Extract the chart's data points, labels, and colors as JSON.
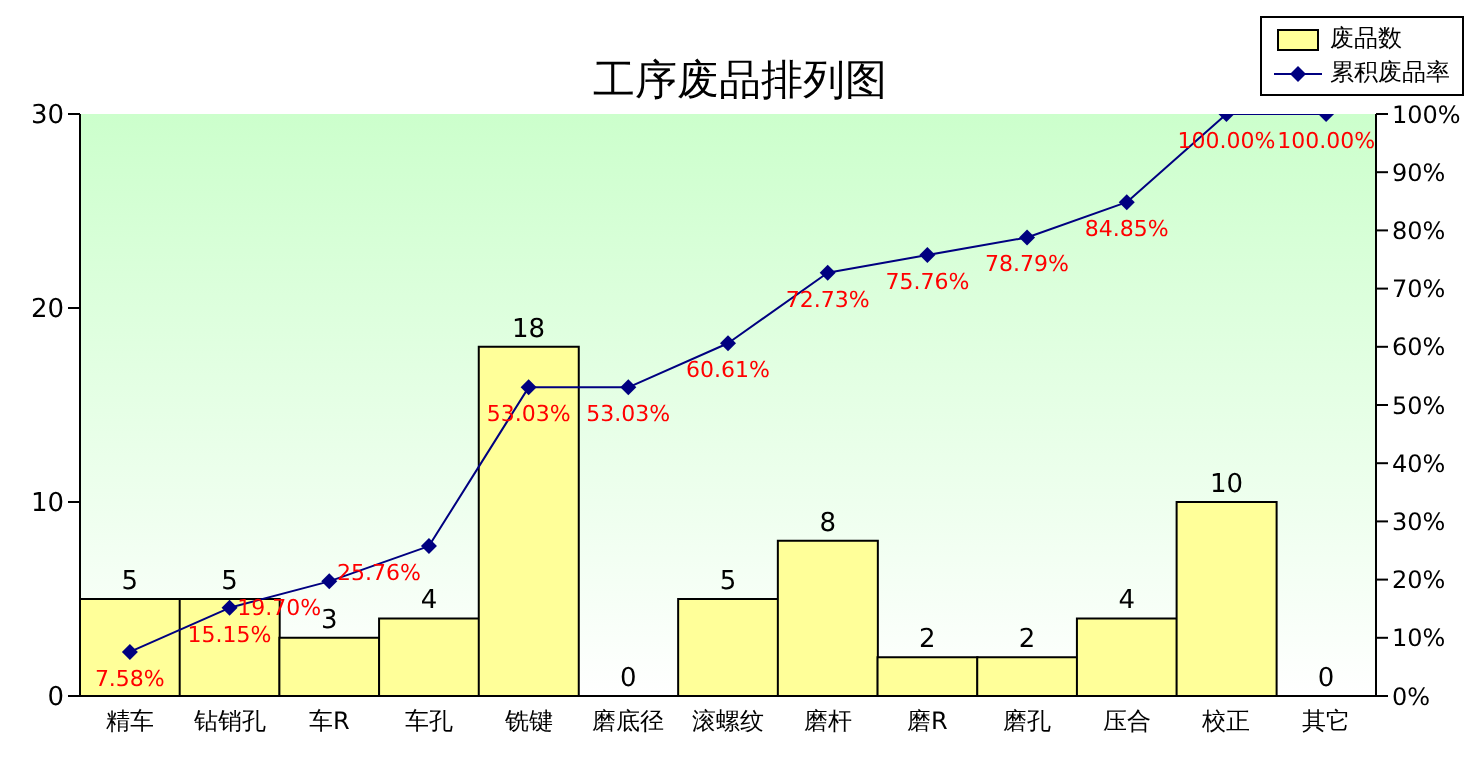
{
  "chart_data": {
    "type": "bar",
    "title": "工序废品排列图",
    "categories": [
      "精车",
      "钻销孔",
      "车R",
      "车孔",
      "铣键",
      "磨底径",
      "滚螺纹",
      "磨杆",
      "磨R",
      "磨孔",
      "压合",
      "校正",
      "其它"
    ],
    "series": [
      {
        "name": "废品数",
        "color": "#ffff99",
        "values": [
          5,
          5,
          3,
          4,
          18,
          0,
          5,
          8,
          2,
          2,
          4,
          10,
          0
        ],
        "value_labels": [
          "5",
          "5",
          "3",
          "4",
          "18",
          "0",
          "5",
          "8",
          "2",
          "2",
          "4",
          "10",
          "0"
        ]
      },
      {
        "name": "累积废品率",
        "type": "line",
        "axis": "y2",
        "color": "#000080",
        "marker": "diamond",
        "values": [
          7.58,
          15.15,
          19.7,
          25.76,
          53.03,
          53.03,
          60.61,
          72.73,
          75.76,
          78.79,
          84.85,
          100,
          100
        ],
        "value_labels": [
          "7.58%",
          "15.15%",
          "19.70%",
          "25.76%",
          "53.03%",
          "53.03%",
          "60.61%",
          "72.73%",
          "75.76%",
          "78.79%",
          "84.85%",
          "100.00%",
          "100.00%"
        ]
      }
    ],
    "ylim": [
      0,
      30
    ],
    "yticks": [
      0,
      10,
      20,
      30
    ],
    "y2lim": [
      0,
      100
    ],
    "y2ticks": [
      {
        "value": 0,
        "label": "0%"
      },
      {
        "value": 10,
        "label": "10%"
      },
      {
        "value": 20,
        "label": "20%"
      },
      {
        "value": 30,
        "label": "30%"
      },
      {
        "value": 40,
        "label": "40%"
      },
      {
        "value": 50,
        "label": "50%"
      },
      {
        "value": 60,
        "label": "60%"
      },
      {
        "value": 70,
        "label": "70%"
      },
      {
        "value": 80,
        "label": "80%"
      },
      {
        "value": 90,
        "label": "90%"
      },
      {
        "value": 100,
        "label": "100%"
      }
    ],
    "grid": false,
    "legend": "top right"
  }
}
